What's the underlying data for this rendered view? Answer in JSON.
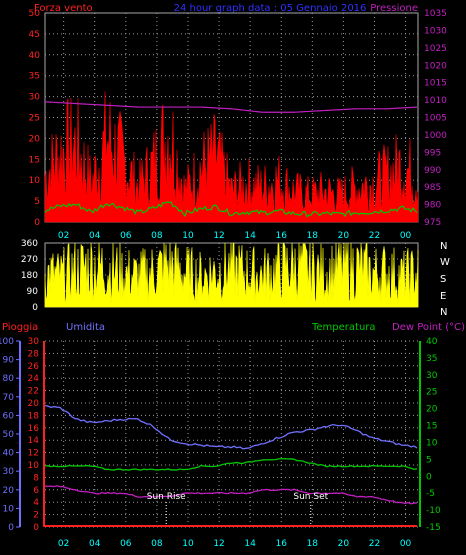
{
  "header": {
    "left_title": "Forza vento",
    "center_title": "24 hour graph data : 05 Gennaio 2016",
    "right_title": "Pressione"
  },
  "compass": [
    "N",
    "W",
    "S",
    "E",
    "N"
  ],
  "lower_labels": {
    "rain": "Pioggia",
    "humidity": "Umidita",
    "temperature": "Temperatura",
    "dewpoint": "Dew Point (°C)",
    "sunrise": "Sun Rise",
    "sunset": "Sun Set"
  },
  "colors": {
    "background": "#000000",
    "grid": "#9a9a9a",
    "wind": "#ff0000",
    "wind_avg": "#00c800",
    "gust": "#ffffff",
    "pressure": "#c020c0",
    "direction": "#ffff00",
    "humidity": "#7070ff",
    "temperature": "#00c800",
    "dewpoint": "#c020c0",
    "rain": "#ff2020",
    "title_blue": "#3030ff"
  },
  "chart_data": [
    {
      "type": "area",
      "name": "wind",
      "x_ticks": [
        "02",
        "04",
        "06",
        "08",
        "10",
        "12",
        "14",
        "16",
        "18",
        "20",
        "22",
        "00"
      ],
      "y_left": {
        "label": "Forza vento",
        "ticks": [
          0,
          5,
          10,
          15,
          20,
          25,
          30,
          35,
          40,
          45,
          50
        ],
        "range": [
          0,
          50
        ]
      },
      "y_right": {
        "label": "Pressione",
        "ticks": [
          975,
          980,
          985,
          990,
          995,
          1000,
          1005,
          1010,
          1015,
          1020,
          1025,
          1030,
          1035
        ],
        "range": [
          975,
          1035
        ]
      },
      "series": [
        {
          "name": "Forza vento",
          "axis": "left",
          "x": [
            0,
            1,
            2,
            3,
            4,
            5,
            6,
            7,
            8,
            9,
            10,
            11,
            12,
            13,
            14,
            15,
            16,
            17,
            18,
            19,
            20,
            21,
            22,
            23,
            24
          ],
          "values": [
            12,
            18,
            20,
            10,
            22,
            16,
            9,
            15,
            24,
            8,
            14,
            17,
            8,
            10,
            9,
            11,
            8,
            7,
            8,
            7,
            9,
            10,
            12,
            15,
            11
          ]
        },
        {
          "name": "Pressione",
          "axis": "right",
          "x": [
            0,
            2,
            4,
            6,
            8,
            10,
            12,
            14,
            16,
            18,
            20,
            22,
            24
          ],
          "values": [
            1009.5,
            1009,
            1008.5,
            1008,
            1008,
            1008,
            1007.5,
            1006.5,
            1006.5,
            1007,
            1007.5,
            1007.5,
            1008
          ]
        }
      ]
    },
    {
      "type": "area",
      "name": "direction",
      "y_ticks": [
        0,
        90,
        180,
        270,
        360
      ],
      "range": [
        0,
        360
      ],
      "series": [
        {
          "name": "Direction",
          "x": [
            0,
            1,
            2,
            3,
            4,
            5,
            6,
            7,
            8,
            9,
            10,
            11,
            12,
            13,
            14,
            15,
            16,
            17,
            18,
            19,
            20,
            21,
            22,
            23,
            24
          ],
          "values": [
            200,
            180,
            220,
            250,
            230,
            200,
            180,
            210,
            250,
            200,
            180,
            210,
            230,
            200,
            190,
            220,
            240,
            220,
            200,
            230,
            240,
            200,
            210,
            180,
            200
          ]
        }
      ]
    },
    {
      "type": "line",
      "name": "lower",
      "x_ticks": [
        "02",
        "04",
        "06",
        "08",
        "10",
        "12",
        "14",
        "16",
        "18",
        "20",
        "22",
        "00"
      ],
      "y_humidity_ticks": [
        0,
        10,
        20,
        30,
        40,
        50,
        60,
        70,
        80,
        90,
        100
      ],
      "y_rain_ticks": [
        0,
        2,
        4,
        6,
        8,
        10,
        12,
        14,
        16,
        18,
        20,
        22,
        24,
        26,
        28,
        30
      ],
      "y_temp_ticks": [
        -15,
        -10,
        -5,
        0,
        5,
        10,
        15,
        20,
        25,
        30,
        35,
        40
      ],
      "sunrise_hour": 7.8,
      "sunset_hour": 17.1,
      "series": [
        {
          "name": "Umidita",
          "x": [
            0,
            1,
            2,
            3,
            4,
            5,
            6,
            7,
            8,
            9,
            10,
            11,
            12,
            13,
            14,
            15,
            16,
            17,
            18,
            19,
            20,
            21,
            22,
            23,
            24
          ],
          "values": [
            65,
            64,
            58,
            56,
            57,
            58,
            58,
            54,
            47,
            45,
            44,
            43,
            43,
            42,
            45,
            48,
            51,
            52,
            54,
            55,
            52,
            48,
            46,
            44,
            43
          ]
        },
        {
          "name": "Temperatura",
          "x": [
            0,
            1,
            2,
            3,
            4,
            5,
            6,
            7,
            8,
            9,
            10,
            11,
            12,
            13,
            14,
            15,
            16,
            17,
            18,
            19,
            20,
            21,
            22,
            23,
            24
          ],
          "values": [
            3,
            3,
            3,
            3,
            2,
            2,
            2,
            2,
            2,
            2,
            3,
            3,
            4,
            4,
            5,
            5,
            5,
            4,
            3,
            3,
            3,
            3,
            3,
            3,
            2
          ]
        },
        {
          "name": "Dew Point (°C)",
          "x": [
            0,
            1,
            2,
            3,
            4,
            5,
            6,
            7,
            8,
            9,
            10,
            11,
            12,
            13,
            14,
            15,
            16,
            17,
            18,
            19,
            20,
            21,
            22,
            23,
            24
          ],
          "values": [
            -3,
            -3,
            -4,
            -5,
            -5,
            -5,
            -6,
            -6,
            -6,
            -5,
            -5,
            -5,
            -5,
            -5,
            -4,
            -4,
            -4,
            -5,
            -5,
            -5,
            -6,
            -6,
            -7,
            -8,
            -8
          ]
        },
        {
          "name": "Pioggia",
          "x": [
            0,
            24
          ],
          "values": [
            0,
            0
          ]
        }
      ]
    }
  ]
}
